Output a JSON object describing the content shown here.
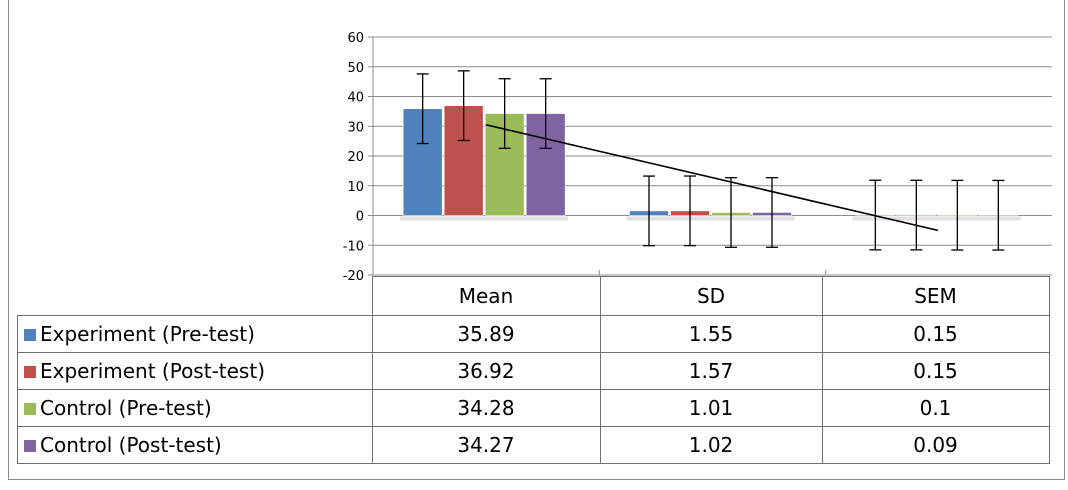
{
  "chart_data": {
    "type": "bar",
    "categories": [
      "Mean",
      "SD",
      "SEM"
    ],
    "series": [
      {
        "name": "Experiment (Pre-test)",
        "values": [
          35.89,
          1.55,
          0.15
        ],
        "color": "#4f81bd"
      },
      {
        "name": "Experiment (Post-test)",
        "values": [
          36.92,
          1.57,
          0.15
        ],
        "color": "#c0504d"
      },
      {
        "name": "Control (Pre-test)",
        "values": [
          34.28,
          1.01,
          0.1
        ],
        "color": "#9bbb59"
      },
      {
        "name": "Control (Post-test)",
        "values": [
          34.27,
          1.02,
          0.09
        ],
        "color": "#8064a2"
      }
    ],
    "error_bar": 11.7,
    "y_ticks": [
      "60",
      "50",
      "40",
      "30",
      "20",
      "10",
      "0",
      "-10",
      "-20"
    ],
    "ylim": [
      -20,
      60
    ],
    "trendline": {
      "from": 30.5,
      "to": -5
    },
    "grid": true,
    "legend": "data-table"
  },
  "table": {
    "headers": [
      "Mean",
      "SD",
      "SEM"
    ],
    "rows": [
      {
        "label": "Experiment (Pre-test)",
        "values": [
          "35.89",
          "1.55",
          "0.15"
        ]
      },
      {
        "label": "Experiment (Post-test)",
        "values": [
          "36.92",
          "1.57",
          "0.15"
        ]
      },
      {
        "label": "Control (Pre-test)",
        "values": [
          "34.28",
          "1.01",
          "0.1"
        ]
      },
      {
        "label": "Control (Post-test)",
        "values": [
          "34.27",
          "1.02",
          "0.09"
        ]
      }
    ]
  }
}
